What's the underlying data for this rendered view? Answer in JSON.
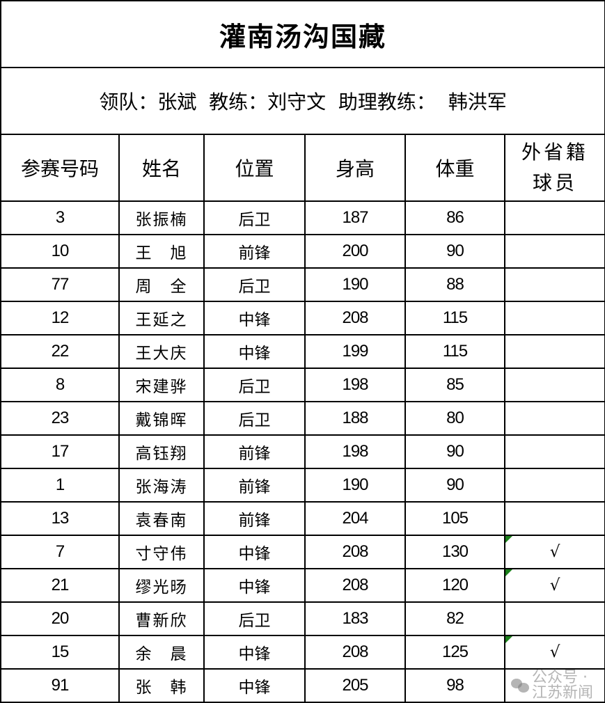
{
  "title": "灌南汤沟国藏",
  "staff": "领队：张斌  教练：刘守文  助理教练：  韩洪军",
  "headers": [
    "参赛号码",
    "姓名",
    "位置",
    "身高",
    "体重",
    "外省籍\n球员"
  ],
  "header_last_lines": [
    "外省籍",
    "球员"
  ],
  "rows": [
    {
      "no": "3",
      "name": "张振楠",
      "pos": "后卫",
      "height": "187",
      "weight": "86",
      "out": ""
    },
    {
      "no": "10",
      "name": "王　旭",
      "pos": "前锋",
      "height": "200",
      "weight": "90",
      "out": ""
    },
    {
      "no": "77",
      "name": "周　全",
      "pos": "后卫",
      "height": "190",
      "weight": "88",
      "out": ""
    },
    {
      "no": "12",
      "name": "王延之",
      "pos": "中锋",
      "height": "208",
      "weight": "115",
      "out": ""
    },
    {
      "no": "22",
      "name": "王大庆",
      "pos": "中锋",
      "height": "199",
      "weight": "115",
      "out": ""
    },
    {
      "no": "8",
      "name": "宋建骅",
      "pos": "后卫",
      "height": "198",
      "weight": "85",
      "out": ""
    },
    {
      "no": "23",
      "name": "戴锦晖",
      "pos": "后卫",
      "height": "188",
      "weight": "80",
      "out": ""
    },
    {
      "no": "17",
      "name": "高钰翔",
      "pos": "前锋",
      "height": "198",
      "weight": "90",
      "out": ""
    },
    {
      "no": "1",
      "name": "张海涛",
      "pos": "前锋",
      "height": "190",
      "weight": "90",
      "out": ""
    },
    {
      "no": "13",
      "name": "袁春南",
      "pos": "前锋",
      "height": "204",
      "weight": "105",
      "out": ""
    },
    {
      "no": "7",
      "name": "寸守伟",
      "pos": "中锋",
      "height": "208",
      "weight": "130",
      "out": "√"
    },
    {
      "no": "21",
      "name": "缪光旸",
      "pos": "中锋",
      "height": "208",
      "weight": "120",
      "out": "√"
    },
    {
      "no": "20",
      "name": "曹新欣",
      "pos": "后卫",
      "height": "183",
      "weight": "82",
      "out": ""
    },
    {
      "no": "15",
      "name": "余　晨",
      "pos": "中锋",
      "height": "208",
      "weight": "125",
      "out": "√"
    },
    {
      "no": "91",
      "name": "张　韩",
      "pos": "中锋",
      "height": "205",
      "weight": "98",
      "out": ""
    }
  ],
  "watermark": "公众号 · 江苏新闻",
  "colors": {
    "comment_flag": "#1a7f1a",
    "grid": "#000000"
  }
}
